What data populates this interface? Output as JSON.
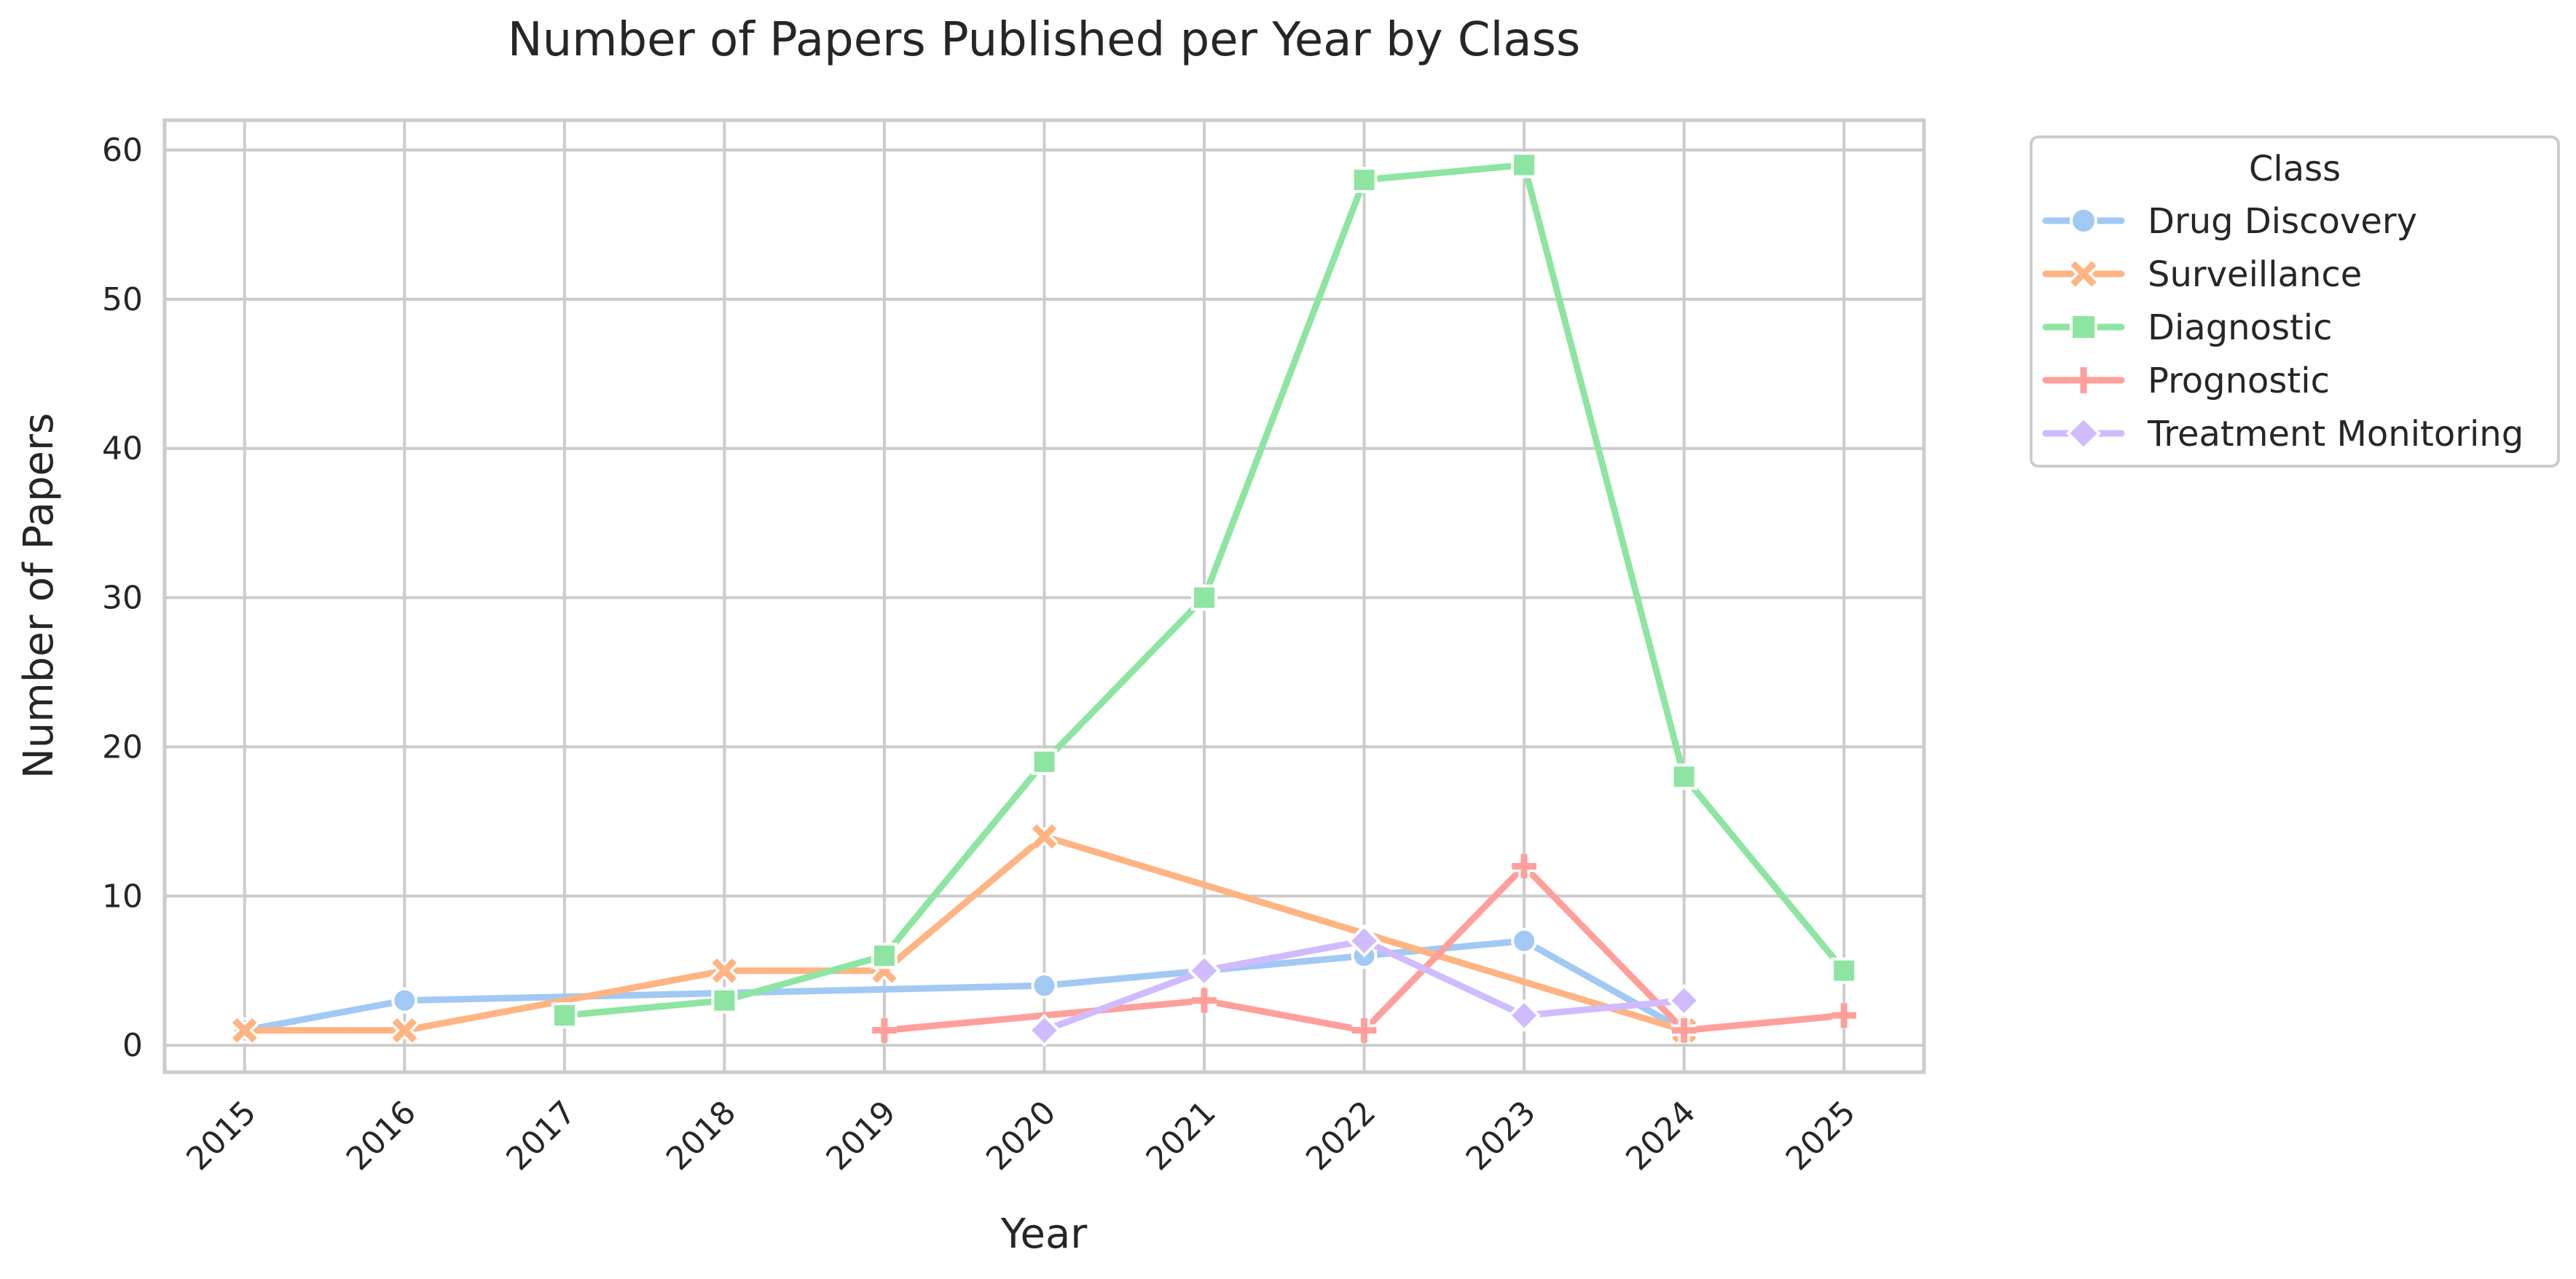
{
  "chart_data": {
    "type": "line",
    "title": "Number of Papers Published per Year by Class",
    "xlabel": "Year",
    "ylabel": "Number of Papers",
    "x": [
      2015,
      2016,
      2017,
      2018,
      2019,
      2020,
      2021,
      2022,
      2023,
      2024,
      2025
    ],
    "xlim": [
      2014.5,
      2025.5
    ],
    "ylim": [
      -1.8,
      62
    ],
    "yticks": [
      0,
      10,
      20,
      30,
      40,
      50,
      60
    ],
    "grid": true,
    "legend": {
      "title": "Class",
      "placement": "outside-top-right"
    },
    "series": [
      {
        "name": "Drug Discovery",
        "color": "#a1c9f4",
        "marker": "circle",
        "points": [
          [
            2015,
            1
          ],
          [
            2016,
            3
          ],
          [
            2020,
            4
          ],
          [
            2021,
            5
          ],
          [
            2022,
            6
          ],
          [
            2023,
            7
          ],
          [
            2024,
            1
          ]
        ]
      },
      {
        "name": "Surveillance",
        "color": "#ffb482",
        "marker": "x",
        "points": [
          [
            2015,
            1
          ],
          [
            2016,
            1
          ],
          [
            2018,
            5
          ],
          [
            2019,
            5
          ],
          [
            2020,
            14
          ],
          [
            2024,
            1
          ]
        ]
      },
      {
        "name": "Diagnostic",
        "color": "#8de5a1",
        "marker": "square",
        "points": [
          [
            2017,
            2
          ],
          [
            2018,
            3
          ],
          [
            2019,
            6
          ],
          [
            2020,
            19
          ],
          [
            2021,
            30
          ],
          [
            2022,
            58
          ],
          [
            2023,
            59
          ],
          [
            2024,
            18
          ],
          [
            2025,
            5
          ]
        ]
      },
      {
        "name": "Prognostic",
        "color": "#ff9f9b",
        "marker": "plus",
        "points": [
          [
            2019,
            1
          ],
          [
            2021,
            3
          ],
          [
            2022,
            1
          ],
          [
            2023,
            12
          ],
          [
            2024,
            1
          ],
          [
            2025,
            2
          ]
        ]
      },
      {
        "name": "Treatment Monitoring",
        "color": "#d0bbff",
        "marker": "diamond",
        "points": [
          [
            2020,
            1
          ],
          [
            2021,
            5
          ],
          [
            2022,
            7
          ],
          [
            2023,
            2
          ],
          [
            2024,
            3
          ]
        ]
      }
    ]
  }
}
